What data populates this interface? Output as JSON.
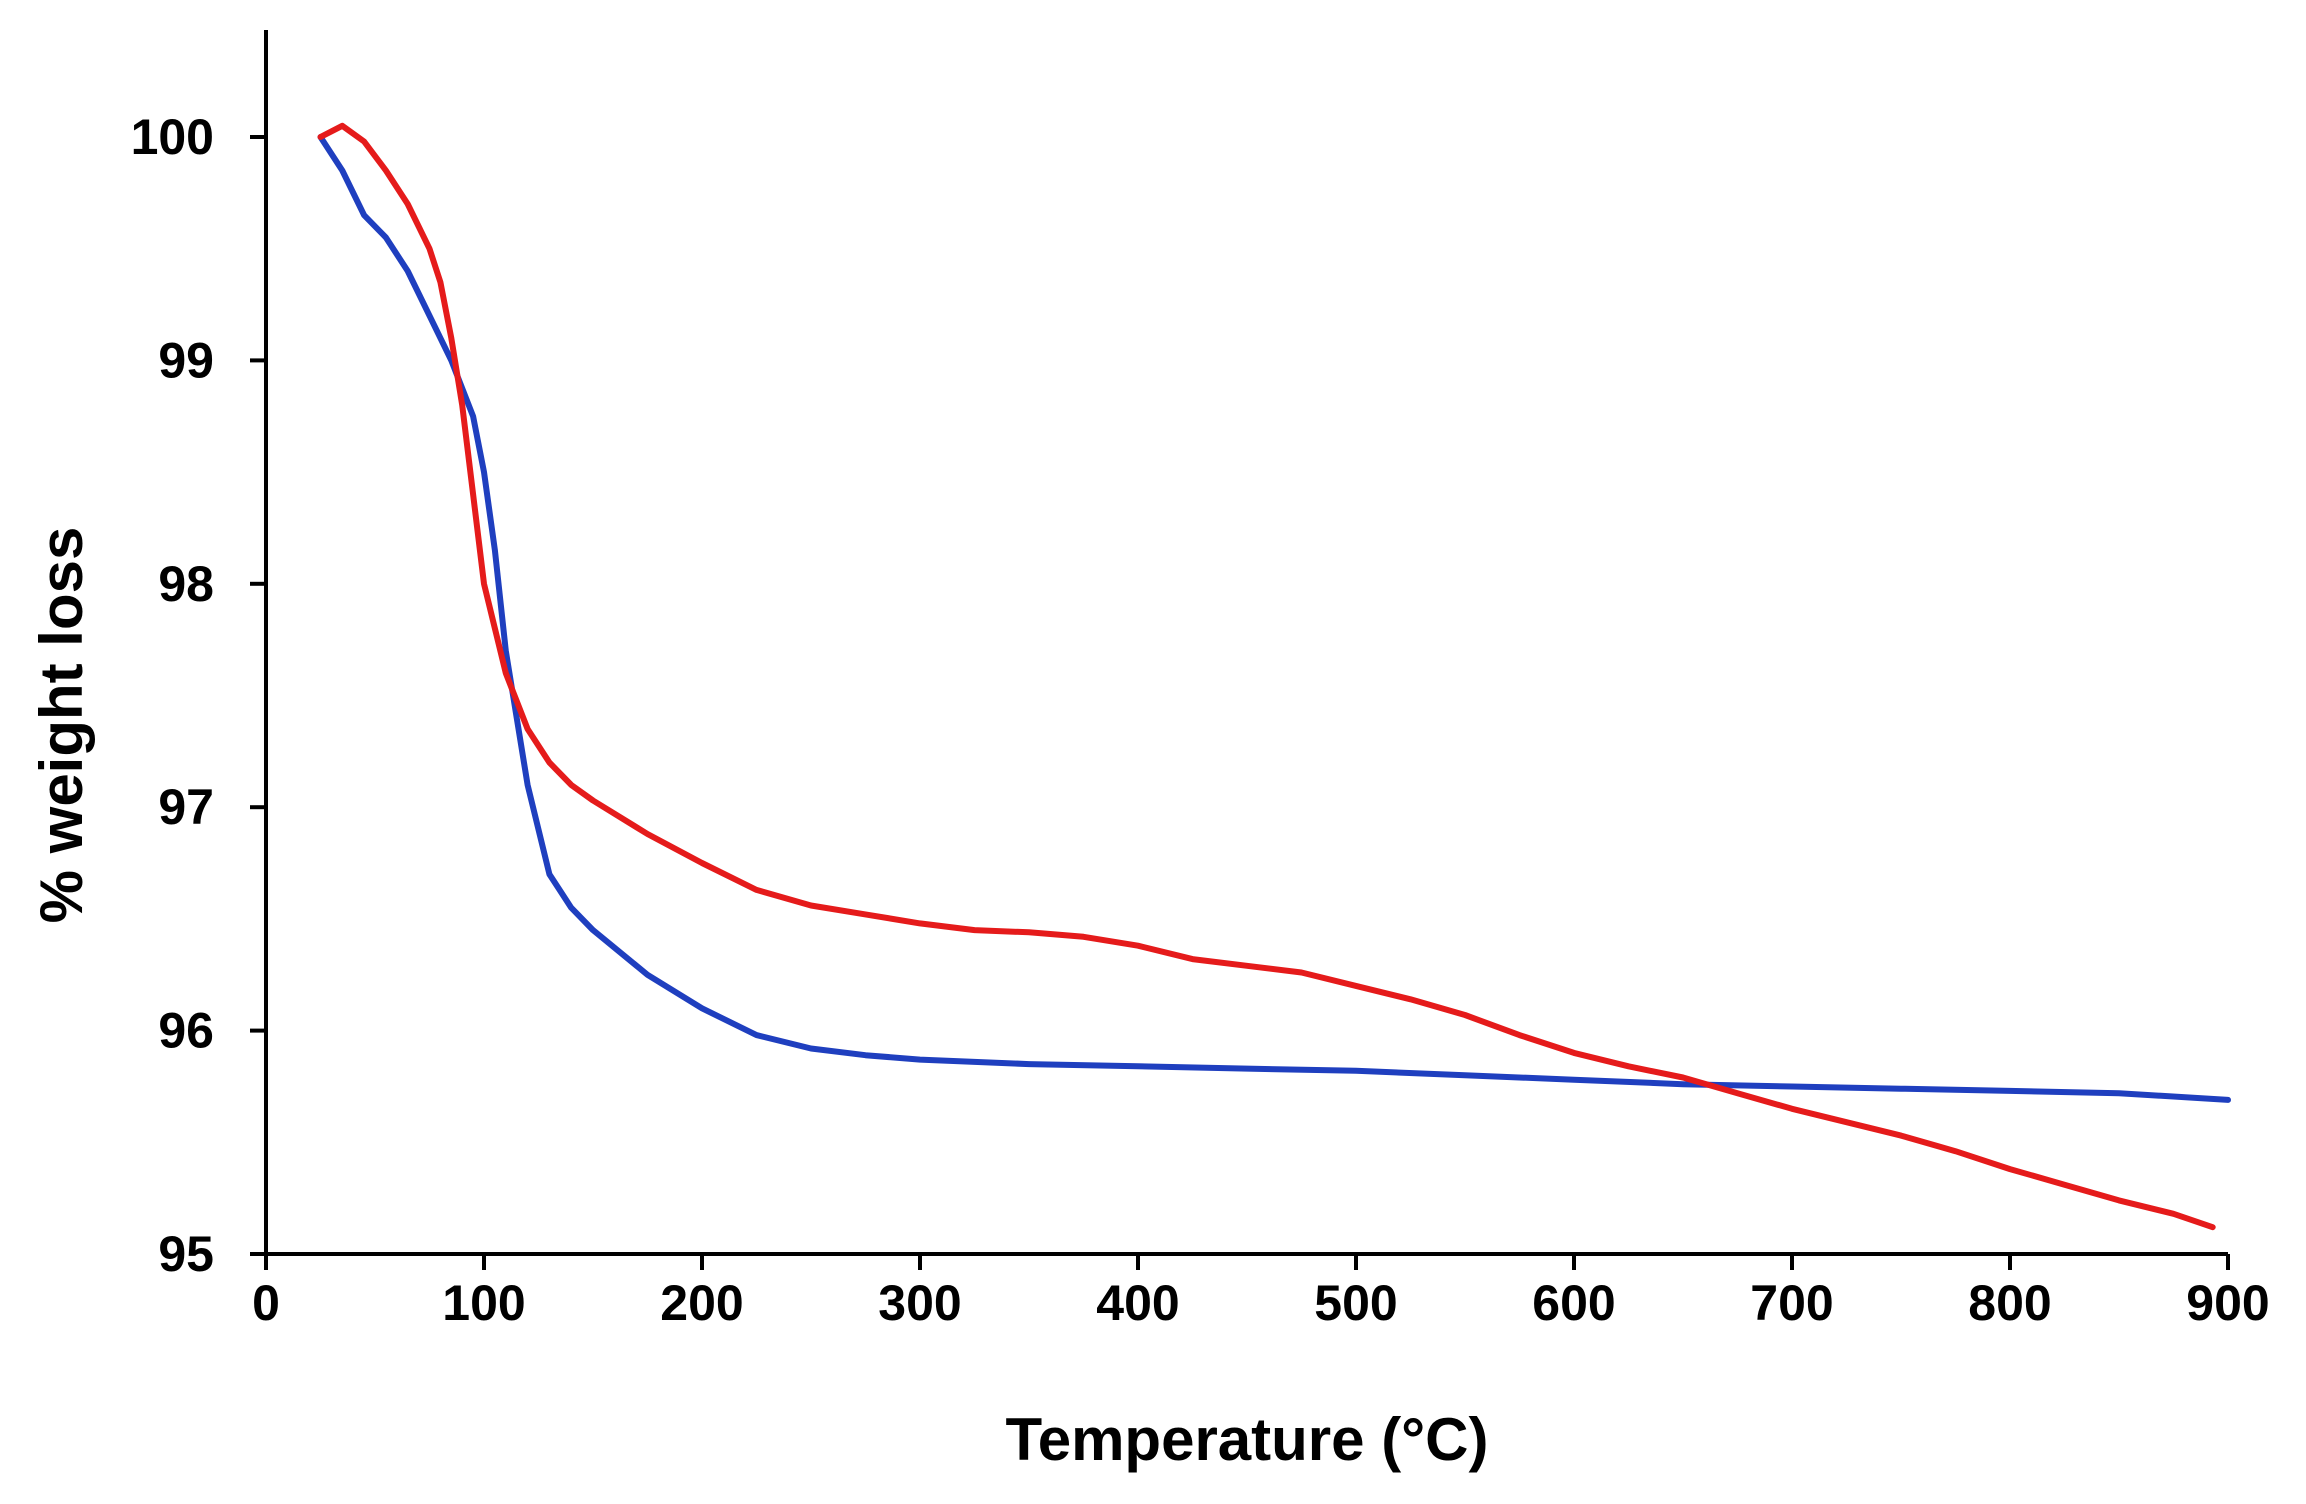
{
  "chart_data": {
    "type": "line",
    "title": "",
    "xlabel": "Temperature (°C)",
    "ylabel": "% weight loss",
    "xlim": [
      0,
      900
    ],
    "ylim": [
      95,
      100.5
    ],
    "x_ticks": [
      0,
      100,
      200,
      300,
      400,
      500,
      600,
      700,
      800,
      900
    ],
    "y_ticks": [
      95,
      96,
      97,
      98,
      99,
      100
    ],
    "grid": false,
    "legend": "none",
    "series": [
      {
        "name": "blue",
        "color": "#1f3fbf",
        "x": [
          25,
          35,
          45,
          55,
          65,
          75,
          85,
          95,
          100,
          105,
          110,
          115,
          120,
          130,
          140,
          150,
          175,
          200,
          225,
          250,
          275,
          300,
          350,
          400,
          450,
          500,
          550,
          600,
          650,
          700,
          750,
          800,
          850,
          900
        ],
        "y": [
          100.0,
          99.85,
          99.65,
          99.55,
          99.4,
          99.2,
          99.0,
          98.75,
          98.5,
          98.15,
          97.7,
          97.4,
          97.1,
          96.7,
          96.55,
          96.45,
          96.25,
          96.1,
          95.98,
          95.92,
          95.89,
          95.87,
          95.85,
          95.84,
          95.83,
          95.82,
          95.8,
          95.78,
          95.76,
          95.75,
          95.74,
          95.73,
          95.72,
          95.69
        ]
      },
      {
        "name": "red",
        "color": "#e51b1b",
        "x": [
          25,
          35,
          45,
          55,
          65,
          75,
          80,
          85,
          90,
          95,
          100,
          105,
          110,
          120,
          130,
          140,
          150,
          175,
          200,
          225,
          250,
          275,
          300,
          325,
          350,
          375,
          400,
          425,
          450,
          475,
          500,
          525,
          550,
          575,
          600,
          625,
          650,
          675,
          700,
          725,
          750,
          775,
          800,
          825,
          850,
          875,
          893
        ],
        "y": [
          100.0,
          100.05,
          99.98,
          99.85,
          99.7,
          99.5,
          99.35,
          99.1,
          98.8,
          98.4,
          98.0,
          97.8,
          97.6,
          97.35,
          97.2,
          97.1,
          97.03,
          96.88,
          96.75,
          96.63,
          96.56,
          96.52,
          96.48,
          96.45,
          96.44,
          96.42,
          96.38,
          96.32,
          96.29,
          96.26,
          96.2,
          96.14,
          96.07,
          95.98,
          95.9,
          95.84,
          95.79,
          95.72,
          95.65,
          95.59,
          95.53,
          95.46,
          95.38,
          95.31,
          95.24,
          95.18,
          95.12
        ]
      }
    ]
  }
}
